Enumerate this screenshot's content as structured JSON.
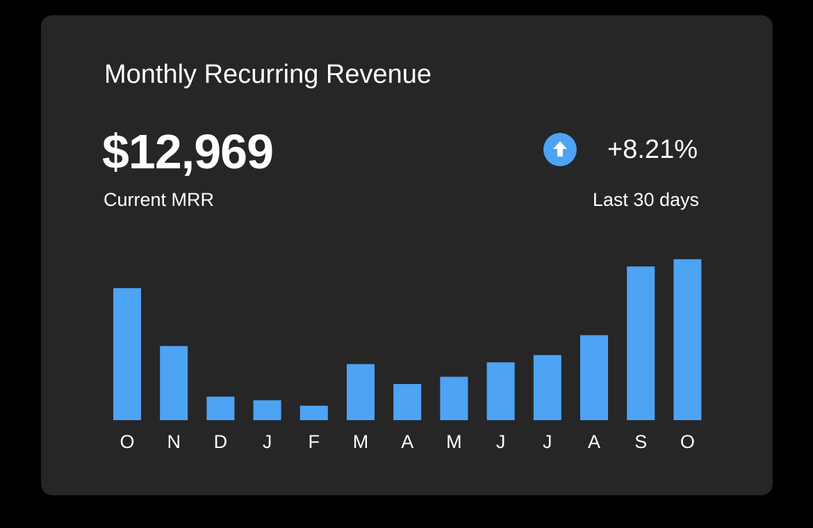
{
  "card": {
    "title": "Monthly Recurring Revenue",
    "amount": "$12,969",
    "amount_label": "Current MRR",
    "trend": {
      "icon": "arrow-up-circle-icon",
      "value": "+8.21%",
      "period": "Last 30 days"
    }
  },
  "colors": {
    "background": "#000000",
    "card": "#262626",
    "accent": "#4da3f4",
    "text": "#ffffff"
  },
  "chart_data": {
    "type": "bar",
    "categories": [
      "O",
      "N",
      "D",
      "J",
      "F",
      "M",
      "A",
      "M",
      "J",
      "J",
      "A",
      "S",
      "O"
    ],
    "values": [
      73,
      41,
      13,
      11,
      8,
      31,
      20,
      24,
      32,
      36,
      47,
      85,
      89
    ],
    "ylim": [
      0,
      100
    ],
    "grid": false,
    "legend": "none"
  }
}
